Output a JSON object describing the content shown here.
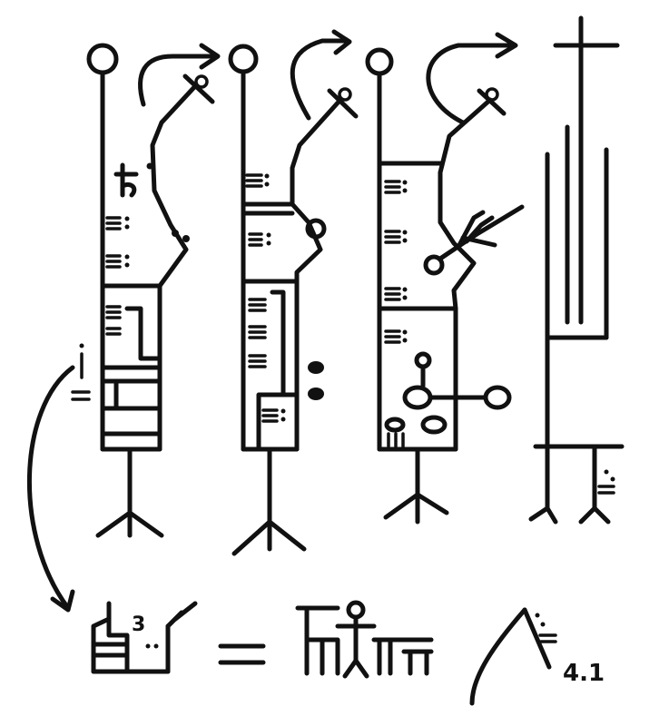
{
  "labels": {
    "equation_superscript": "3",
    "equation_suffix": "4.1"
  },
  "colors": {
    "ink": "#111111",
    "background": "#ffffff"
  },
  "figures": [
    {
      "name": "figure-1"
    },
    {
      "name": "figure-2"
    },
    {
      "name": "figure-3"
    },
    {
      "name": "figure-4"
    }
  ]
}
